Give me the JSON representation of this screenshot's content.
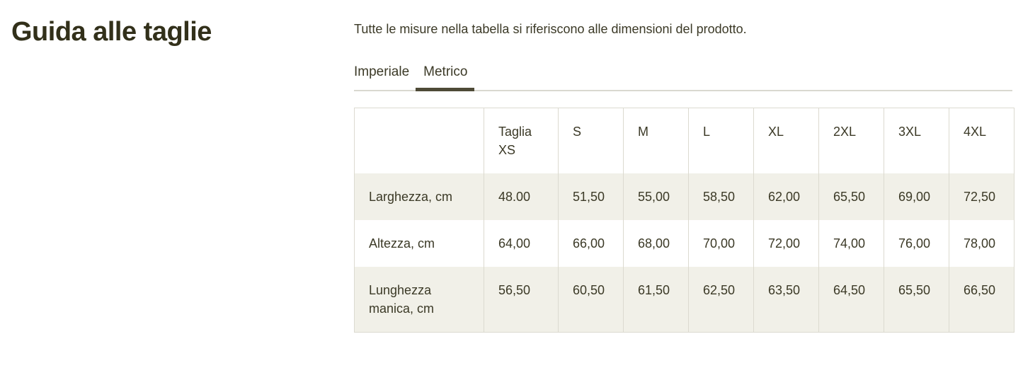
{
  "page": {
    "title": "Guida alle taglie",
    "note": "Tutte le misure nella tabella si riferiscono alle dimensioni del prodotto."
  },
  "tabs": [
    {
      "label": "Imperiale",
      "active": false
    },
    {
      "label": "Metrico",
      "active": true
    }
  ],
  "table": {
    "header": [
      "",
      "Taglia XS",
      "S",
      "M",
      "L",
      "XL",
      "2XL",
      "3XL",
      "4XL"
    ],
    "rows": [
      {
        "label": "Larghezza, cm",
        "values": [
          "48.00",
          "51,50",
          "55,00",
          "58,50",
          "62,00",
          "65,50",
          "69,00",
          "72,50"
        ]
      },
      {
        "label": "Altezza, cm",
        "values": [
          "64,00",
          "66,00",
          "68,00",
          "70,00",
          "72,00",
          "74,00",
          "76,00",
          "78,00"
        ]
      },
      {
        "label": "Lunghezza manica, cm",
        "values": [
          "56,50",
          "60,50",
          "61,50",
          "62,50",
          "63,50",
          "64,50",
          "65,50",
          "66,50"
        ]
      }
    ]
  },
  "colors": {
    "title_text": "#32301a",
    "body_text": "#3b3926",
    "row_shade": "#f1f0e8",
    "table_border": "#dcdad0",
    "tab_underline": "#4e4a37",
    "tab_rule": "#d9d8d0"
  }
}
